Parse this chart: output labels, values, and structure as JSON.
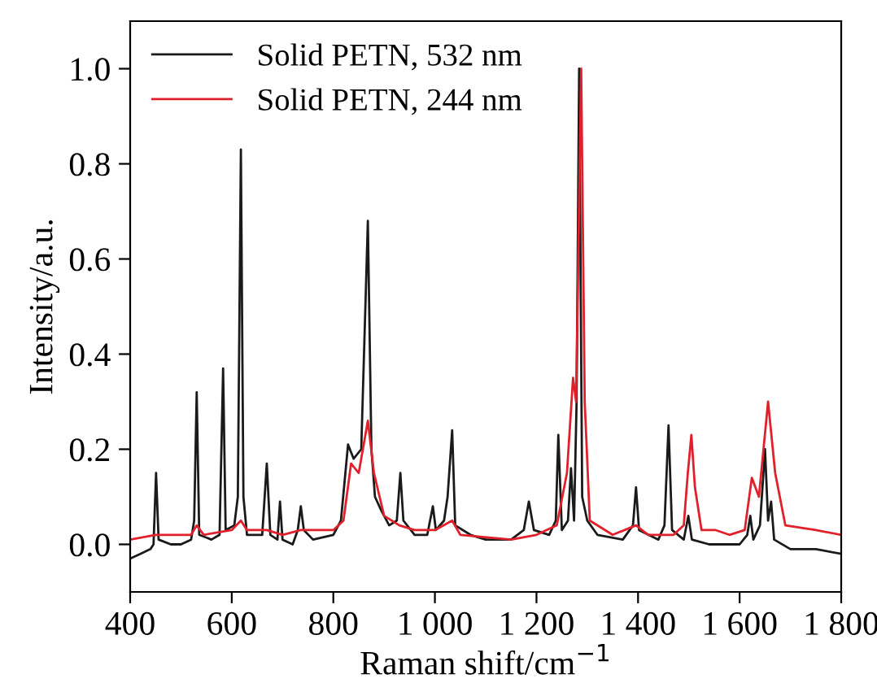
{
  "chart_data": {
    "type": "line",
    "xlabel": "Raman shift/cm$^{−1}$",
    "ylabel": "Intensity/a.u.",
    "xlim": [
      400,
      1800
    ],
    "ylim": [
      -0.1,
      1.1
    ],
    "xticks": [
      400,
      600,
      800,
      {
        "value": 1000,
        "label": "1 000"
      },
      {
        "value": 1200,
        "label": "1 200"
      },
      {
        "value": 1400,
        "label": "1 400"
      },
      {
        "value": 1600,
        "label": "1 600"
      },
      {
        "value": 1800,
        "label": "1 800"
      }
    ],
    "yticks": [
      {
        "value": 0,
        "label": "0.0"
      },
      0.2,
      0.4,
      0.6,
      0.8,
      {
        "value": 1,
        "label": "1.0"
      }
    ],
    "grid": false,
    "legend": "top left",
    "marker": "none",
    "line_style": "solid",
    "series": [
      {
        "name": "Solid PETN, 532 nm",
        "color": "#1a1a1a",
        "x": [
          400,
          420,
          440,
          446,
          451,
          456,
          480,
          500,
          520,
          526,
          531,
          536,
          560,
          576,
          583,
          588,
          605,
          612,
          618,
          623,
          630,
          660,
          669,
          676,
          690,
          695,
          700,
          720,
          730,
          736,
          742,
          760,
          800,
          815,
          829,
          840,
          855,
          868,
          875,
          882,
          895,
          910,
          925,
          932,
          938,
          960,
          985,
          996,
          1002,
          1018,
          1025,
          1034,
          1040,
          1070,
          1100,
          1150,
          1175,
          1185,
          1195,
          1225,
          1238,
          1243,
          1250,
          1262,
          1268,
          1274,
          1279,
          1284,
          1290,
          1300,
          1320,
          1370,
          1390,
          1396,
          1402,
          1440,
          1452,
          1460,
          1467,
          1490,
          1499,
          1506,
          1540,
          1600,
          1615,
          1621,
          1627,
          1640,
          1650,
          1656,
          1662,
          1668,
          1700,
          1750,
          1800
        ],
        "values": [
          -0.03,
          -0.02,
          -0.01,
          0.0,
          0.15,
          0.01,
          0.0,
          0.0,
          0.01,
          0.05,
          0.32,
          0.02,
          0.01,
          0.02,
          0.37,
          0.03,
          0.04,
          0.1,
          0.83,
          0.1,
          0.02,
          0.02,
          0.17,
          0.02,
          0.01,
          0.09,
          0.01,
          0.0,
          0.03,
          0.08,
          0.03,
          0.01,
          0.02,
          0.05,
          0.21,
          0.18,
          0.2,
          0.68,
          0.2,
          0.1,
          0.07,
          0.04,
          0.05,
          0.15,
          0.05,
          0.02,
          0.02,
          0.08,
          0.03,
          0.05,
          0.1,
          0.24,
          0.04,
          0.02,
          0.01,
          0.01,
          0.03,
          0.09,
          0.03,
          0.02,
          0.05,
          0.23,
          0.03,
          0.05,
          0.16,
          0.05,
          0.3,
          1.0,
          0.1,
          0.05,
          0.02,
          0.01,
          0.04,
          0.12,
          0.03,
          0.01,
          0.04,
          0.25,
          0.03,
          0.01,
          0.06,
          0.01,
          0.0,
          0.0,
          0.02,
          0.06,
          0.01,
          0.04,
          0.2,
          0.05,
          0.09,
          0.01,
          -0.01,
          -0.01,
          -0.02
        ]
      },
      {
        "name": "Solid PETN, 244 nm",
        "color": "#e0202a",
        "x": [
          400,
          450,
          500,
          520,
          531,
          545,
          600,
          618,
          630,
          669,
          700,
          736,
          800,
          820,
          835,
          850,
          868,
          880,
          900,
          930,
          960,
          1000,
          1034,
          1050,
          1150,
          1200,
          1240,
          1260,
          1272,
          1278,
          1288,
          1295,
          1305,
          1350,
          1396,
          1420,
          1470,
          1490,
          1498,
          1505,
          1512,
          1525,
          1553,
          1580,
          1610,
          1624,
          1638,
          1656,
          1670,
          1690,
          1750,
          1800
        ],
        "values": [
          0.01,
          0.02,
          0.02,
          0.02,
          0.04,
          0.02,
          0.03,
          0.05,
          0.03,
          0.03,
          0.02,
          0.03,
          0.03,
          0.05,
          0.17,
          0.15,
          0.26,
          0.15,
          0.06,
          0.04,
          0.03,
          0.03,
          0.05,
          0.02,
          0.01,
          0.02,
          0.04,
          0.15,
          0.35,
          0.3,
          1.0,
          0.3,
          0.05,
          0.02,
          0.04,
          0.02,
          0.02,
          0.04,
          0.15,
          0.23,
          0.12,
          0.03,
          0.03,
          0.02,
          0.03,
          0.14,
          0.1,
          0.3,
          0.15,
          0.04,
          0.03,
          0.02
        ]
      }
    ]
  }
}
